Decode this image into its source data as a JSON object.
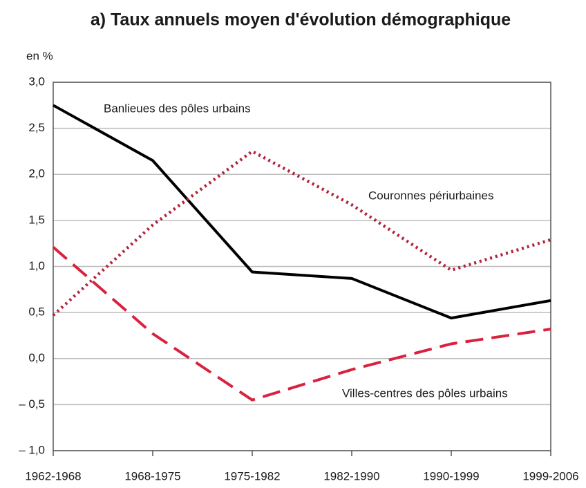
{
  "chart_data": {
    "type": "line",
    "title": "a) Taux annuels moyen d'évolution démographique",
    "y_axis_label": "en %",
    "categories": [
      "1962-1968",
      "1968-1975",
      "1975-1982",
      "1982-1990",
      "1990-1999",
      "1999-2006"
    ],
    "series": [
      {
        "name": "Banlieues des pôles urbains",
        "color": "#000000",
        "style": "solid",
        "values": [
          2.75,
          2.15,
          0.94,
          0.87,
          0.44,
          0.63
        ]
      },
      {
        "name": "Couronnes périurbaines",
        "color": "#b3243c",
        "style": "dotted",
        "values": [
          0.47,
          1.45,
          2.25,
          1.67,
          0.96,
          1.29
        ]
      },
      {
        "name": "Villes-centres des pôles urbains",
        "color": "#d9223f",
        "style": "dashed",
        "values": [
          1.21,
          0.27,
          -0.45,
          -0.12,
          0.16,
          0.32
        ]
      }
    ],
    "ylim": [
      -1,
      3
    ],
    "yticks": [
      {
        "value": 3,
        "label": "3,0"
      },
      {
        "value": 2.5,
        "label": "2,5"
      },
      {
        "value": 2,
        "label": "2,0"
      },
      {
        "value": 1.5,
        "label": "1,5"
      },
      {
        "value": 1,
        "label": "1,0"
      },
      {
        "value": 0.5,
        "label": "0,5"
      },
      {
        "value": 0,
        "label": "0,0"
      },
      {
        "value": -0.5,
        "label": "– 0,5"
      },
      {
        "value": -1,
        "label": "– 1,0"
      }
    ],
    "grid": true
  }
}
